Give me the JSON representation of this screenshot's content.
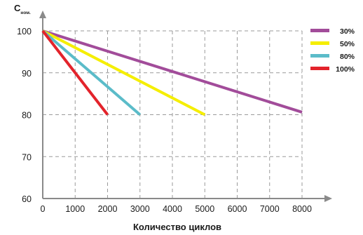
{
  "chart_data": {
    "type": "line",
    "ylabel": {
      "main": "C",
      "sub": "ном."
    },
    "xlabel": "Количество циклов",
    "xlim": [
      0,
      8000
    ],
    "ylim": [
      60,
      100
    ],
    "x_ticks": [
      0,
      1000,
      2000,
      3000,
      4000,
      5000,
      6000,
      7000,
      8000
    ],
    "y_ticks": [
      60,
      70,
      80,
      90,
      100
    ],
    "grid": true,
    "grid_style": "dashed",
    "legend_position": "top-right",
    "series": [
      {
        "name": "30%",
        "color": "#a24c9a",
        "points": [
          [
            0,
            100
          ],
          [
            8000,
            80.6
          ]
        ]
      },
      {
        "name": "50%",
        "color": "#f5ee00",
        "points": [
          [
            0,
            100
          ],
          [
            5000,
            80
          ]
        ]
      },
      {
        "name": "80%",
        "color": "#5bbcc9",
        "points": [
          [
            0,
            100
          ],
          [
            3000,
            80
          ]
        ]
      },
      {
        "name": "100%",
        "color": "#e3232b",
        "points": [
          [
            0,
            100
          ],
          [
            2000,
            80
          ]
        ]
      }
    ]
  }
}
